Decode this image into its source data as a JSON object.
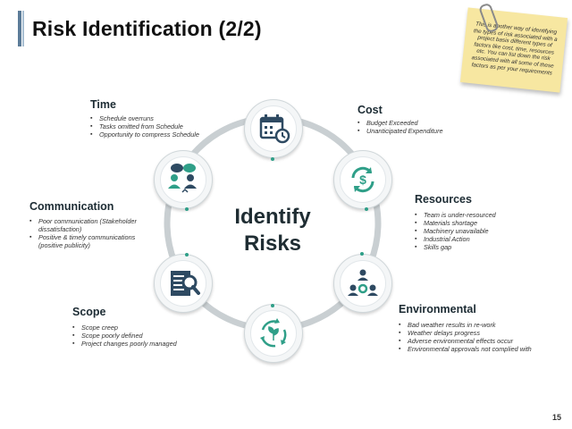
{
  "slide": {
    "title": "Risk Identification (2/2)",
    "page_number": "15",
    "center_text": [
      "Identify",
      "Risks"
    ]
  },
  "note": {
    "text": "This is another way of identifying the types of risk associated with a project basis different types of factors like cost, time, resources etc. You can list down the risk associated with all some of these factors as per your requirements"
  },
  "categories": {
    "time": {
      "label": "Time",
      "items": [
        "Schedule overruns",
        "Tasks omitted from Schedule",
        "Opportunity to compress Schedule"
      ]
    },
    "cost": {
      "label": "Cost",
      "items": [
        "Budget Exceeded",
        "Unanticipated Expenditure"
      ]
    },
    "communication": {
      "label": "Communication",
      "items": [
        "Poor communication (Stakeholder dissatisfaction)",
        "Positive & timely communications (positive publicity)"
      ]
    },
    "resources": {
      "label": "Resources",
      "items": [
        "Team is under-resourced",
        "Materials shortage",
        "Machinery unavailable",
        "Industrial Action",
        "Skills gap"
      ]
    },
    "scope": {
      "label": "Scope",
      "items": [
        "Scope creep",
        "Scope poorly defined",
        "Project changes poorly managed"
      ]
    },
    "environmental": {
      "label": "Environmental",
      "items": [
        "Bad weather results in re-work",
        "Weather delays progress",
        "Adverse environmental effects occur",
        "Environmental approvals not complied with"
      ]
    }
  },
  "colors": {
    "accent": "#2f9f88",
    "icon_dark": "#2e4a62",
    "ring": "#c9cfd2"
  }
}
